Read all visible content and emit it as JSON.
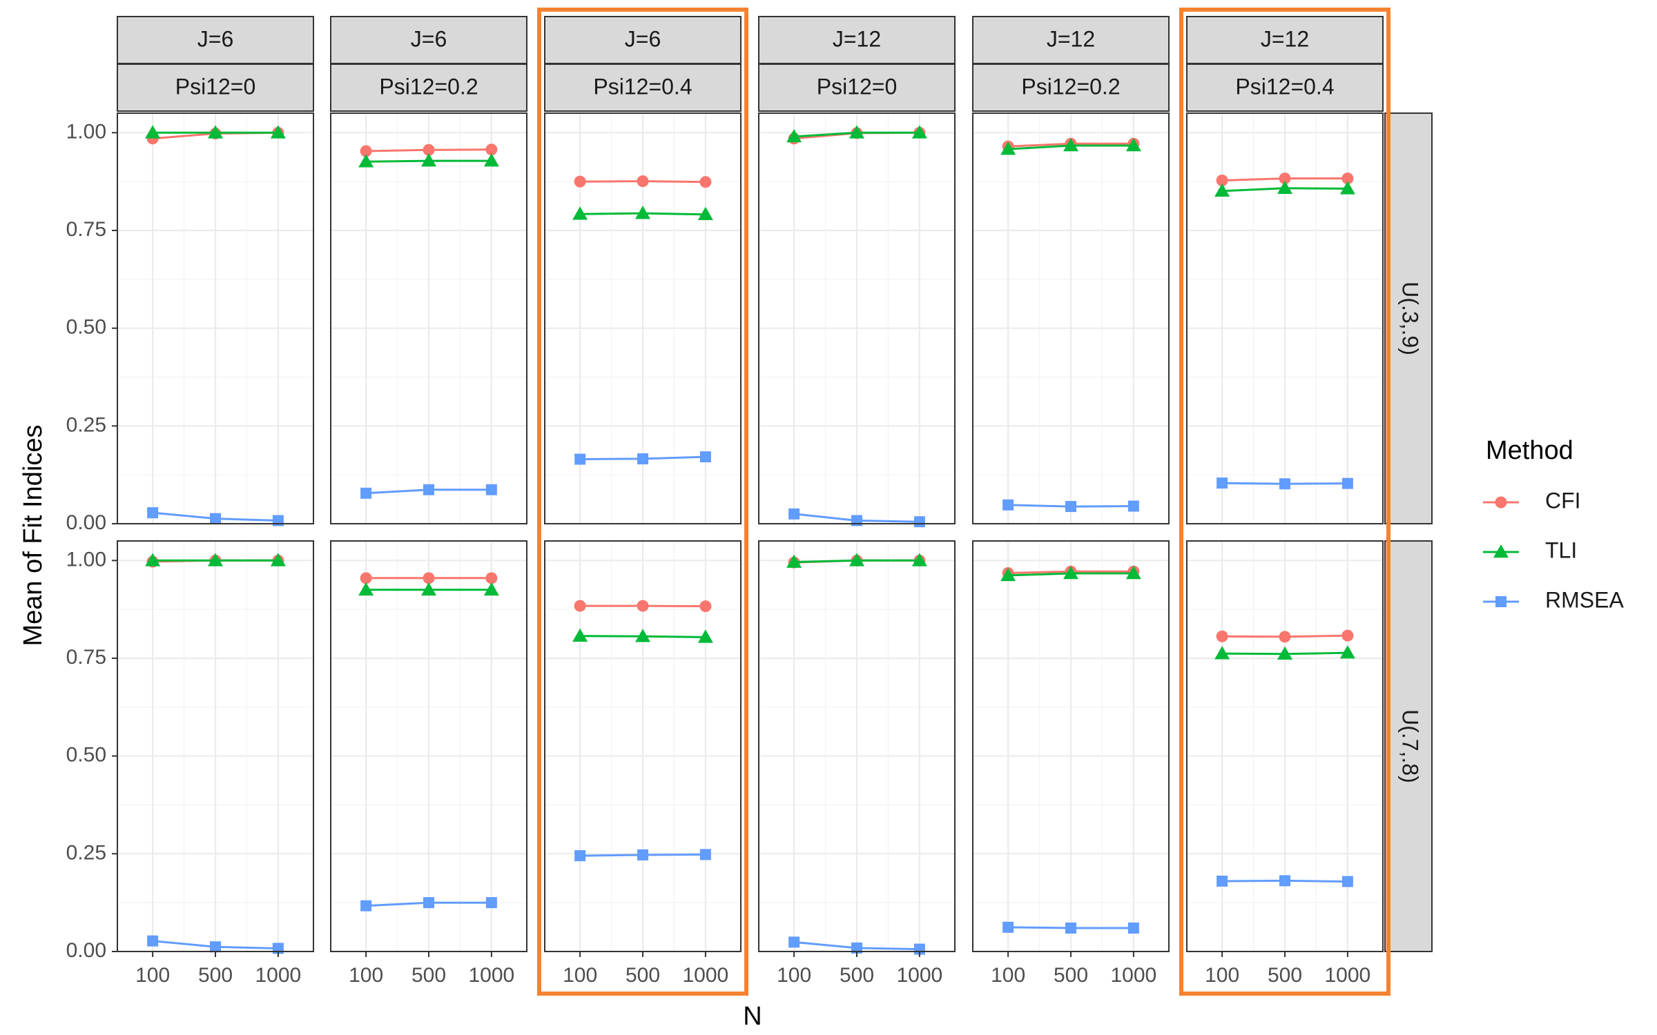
{
  "chart_data": {
    "type": "line",
    "xlabel": "N",
    "ylabel": "Mean of Fit Indices",
    "x": [
      "100",
      "500",
      "1000"
    ],
    "ylim": [
      0,
      1.05
    ],
    "yticks": [
      0,
      0.25,
      0.5,
      0.75,
      1.0
    ],
    "ytick_labels": [
      "0.00",
      "0.25",
      "0.50",
      "0.75",
      "1.00"
    ],
    "grid": true,
    "facet_cols": [
      {
        "top": "J=6",
        "bottom": "Psi12=0",
        "highlight": false
      },
      {
        "top": "J=6",
        "bottom": "Psi12=0.2",
        "highlight": false
      },
      {
        "top": "J=6",
        "bottom": "Psi12=0.4",
        "highlight": true
      },
      {
        "top": "J=12",
        "bottom": "Psi12=0",
        "highlight": false
      },
      {
        "top": "J=12",
        "bottom": "Psi12=0.2",
        "highlight": false
      },
      {
        "top": "J=12",
        "bottom": "Psi12=0.4",
        "highlight": true
      }
    ],
    "facet_rows": [
      "U(.3,.9)",
      "U(.7,.8)"
    ],
    "highlight_color": "#F58231",
    "legend": {
      "title": "Method",
      "position": "right",
      "items": [
        {
          "name": "CFI",
          "color": "#F8766D",
          "shape": "circle"
        },
        {
          "name": "TLI",
          "color": "#00BA38",
          "shape": "triangle"
        },
        {
          "name": "RMSEA",
          "color": "#619CFF",
          "shape": "square"
        }
      ]
    },
    "panels": [
      [
        {
          "CFI": [
            0.985,
            0.998,
            1.0
          ],
          "TLI": [
            1.0,
            1.0,
            1.0
          ],
          "RMSEA": [
            0.028,
            0.013,
            0.008
          ]
        },
        {
          "CFI": [
            0.953,
            0.956,
            0.957
          ],
          "TLI": [
            0.926,
            0.928,
            0.928
          ],
          "RMSEA": [
            0.078,
            0.087,
            0.087
          ]
        },
        {
          "CFI": [
            0.875,
            0.876,
            0.874
          ],
          "TLI": [
            0.792,
            0.794,
            0.791
          ],
          "RMSEA": [
            0.165,
            0.166,
            0.171
          ]
        },
        {
          "CFI": [
            0.985,
            0.999,
            1.0
          ],
          "TLI": [
            0.99,
            1.0,
            1.0
          ],
          "RMSEA": [
            0.025,
            0.008,
            0.005
          ]
        },
        {
          "CFI": [
            0.965,
            0.972,
            0.972
          ],
          "TLI": [
            0.958,
            0.967,
            0.967
          ],
          "RMSEA": [
            0.048,
            0.044,
            0.045
          ]
        },
        {
          "CFI": [
            0.878,
            0.883,
            0.883
          ],
          "TLI": [
            0.851,
            0.858,
            0.857
          ],
          "RMSEA": [
            0.104,
            0.102,
            0.103
          ]
        }
      ],
      [
        {
          "CFI": [
            0.997,
            1.0,
            1.0
          ],
          "TLI": [
            1.0,
            1.0,
            1.0
          ],
          "RMSEA": [
            0.027,
            0.012,
            0.008
          ]
        },
        {
          "CFI": [
            0.955,
            0.955,
            0.955
          ],
          "TLI": [
            0.925,
            0.925,
            0.925
          ],
          "RMSEA": [
            0.117,
            0.125,
            0.125
          ]
        },
        {
          "CFI": [
            0.884,
            0.884,
            0.883
          ],
          "TLI": [
            0.807,
            0.806,
            0.804
          ],
          "RMSEA": [
            0.245,
            0.247,
            0.248
          ]
        },
        {
          "CFI": [
            0.995,
            1.0,
            1.0
          ],
          "TLI": [
            0.996,
            1.0,
            1.0
          ],
          "RMSEA": [
            0.024,
            0.009,
            0.006
          ]
        },
        {
          "CFI": [
            0.968,
            0.972,
            0.972
          ],
          "TLI": [
            0.962,
            0.967,
            0.967
          ],
          "RMSEA": [
            0.062,
            0.06,
            0.06
          ]
        },
        {
          "CFI": [
            0.806,
            0.805,
            0.808
          ],
          "TLI": [
            0.762,
            0.761,
            0.764
          ],
          "RMSEA": [
            0.18,
            0.181,
            0.179
          ]
        }
      ]
    ]
  }
}
